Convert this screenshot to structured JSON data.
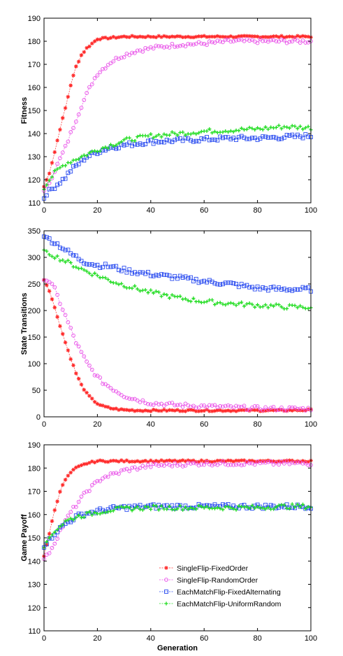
{
  "chart_data": [
    {
      "type": "line",
      "ylabel": "Fitness",
      "xlabel": "",
      "xlim": [
        0,
        100
      ],
      "ylim": [
        110,
        190
      ],
      "xticks": [
        0,
        20,
        40,
        60,
        80,
        100
      ],
      "yticks": [
        110,
        120,
        130,
        140,
        150,
        160,
        170,
        180,
        190
      ],
      "grid": false,
      "legend": false,
      "series": [
        {
          "key": "sf_fixed",
          "color": "#ff2a2a",
          "marker": "star",
          "x": [
            0,
            2,
            4,
            6,
            8,
            10,
            12,
            14,
            16,
            18,
            20,
            25,
            30,
            40,
            50,
            60,
            70,
            80,
            90,
            100
          ],
          "y": [
            117,
            123,
            132,
            142,
            151,
            161,
            169,
            174,
            177,
            179,
            181,
            181.5,
            182,
            182,
            182,
            182,
            182,
            182,
            182,
            182
          ]
        },
        {
          "key": "sf_random",
          "color": "#e84de8",
          "marker": "circle",
          "x": [
            0,
            2,
            4,
            6,
            8,
            10,
            12,
            14,
            16,
            18,
            20,
            22,
            25,
            28,
            30,
            35,
            40,
            50,
            60,
            70,
            80,
            90,
            100
          ],
          "y": [
            115,
            119,
            124,
            129,
            134,
            140,
            146,
            152,
            157,
            162,
            166,
            168,
            171,
            173,
            174,
            176,
            177,
            178.5,
            179,
            180,
            180,
            180,
            180
          ]
        },
        {
          "key": "em_fixed",
          "color": "#2a4cf0",
          "marker": "square",
          "x": [
            0,
            2,
            4,
            6,
            8,
            10,
            12,
            14,
            16,
            18,
            20,
            25,
            30,
            40,
            50,
            60,
            70,
            80,
            90,
            100
          ],
          "y": [
            112,
            115,
            117,
            119,
            121,
            124,
            126,
            128,
            130,
            131,
            132,
            134,
            135,
            136.5,
            137,
            137.5,
            138,
            138,
            138.5,
            139
          ]
        },
        {
          "key": "em_uniform",
          "color": "#22dd22",
          "marker": "plus",
          "x": [
            0,
            2,
            4,
            6,
            8,
            10,
            12,
            14,
            16,
            18,
            20,
            25,
            30,
            40,
            50,
            60,
            70,
            80,
            90,
            100
          ],
          "y": [
            116,
            120,
            123,
            125,
            127,
            128,
            129,
            130,
            131,
            132,
            133,
            135,
            137,
            139,
            140,
            141,
            141.5,
            142,
            143,
            142.5
          ]
        }
      ]
    },
    {
      "type": "line",
      "ylabel": "State Transitions",
      "xlabel": "",
      "xlim": [
        0,
        100
      ],
      "ylim": [
        0,
        350
      ],
      "xticks": [
        0,
        20,
        40,
        60,
        80,
        100
      ],
      "yticks": [
        0,
        50,
        100,
        150,
        200,
        250,
        300,
        350
      ],
      "grid": false,
      "legend": false,
      "series": [
        {
          "key": "sf_fixed",
          "color": "#ff2a2a",
          "marker": "star",
          "x": [
            0,
            2,
            4,
            6,
            8,
            10,
            12,
            14,
            16,
            18,
            20,
            22,
            25,
            28,
            30,
            35,
            40,
            50,
            60,
            70,
            80,
            90,
            100
          ],
          "y": [
            258,
            238,
            205,
            172,
            140,
            110,
            82,
            60,
            44,
            33,
            25,
            20,
            16,
            14,
            13,
            12,
            12,
            12,
            12,
            12,
            12,
            12,
            13
          ]
        },
        {
          "key": "sf_random",
          "color": "#e84de8",
          "marker": "circle",
          "x": [
            0,
            2,
            4,
            6,
            8,
            10,
            12,
            14,
            16,
            18,
            20,
            22,
            25,
            28,
            30,
            35,
            40,
            50,
            60,
            70,
            80,
            90,
            100
          ],
          "y": [
            258,
            255,
            240,
            215,
            190,
            165,
            140,
            120,
            102,
            88,
            75,
            65,
            55,
            46,
            40,
            32,
            26,
            22,
            20,
            18,
            16,
            15,
            15
          ]
        },
        {
          "key": "em_fixed",
          "color": "#2a4cf0",
          "marker": "square",
          "x": [
            0,
            5,
            10,
            15,
            20,
            25,
            30,
            40,
            50,
            60,
            70,
            80,
            90,
            100
          ],
          "y": [
            340,
            325,
            307,
            292,
            285,
            283,
            276,
            268,
            262,
            255,
            250,
            242,
            240,
            240
          ]
        },
        {
          "key": "em_uniform",
          "color": "#22dd22",
          "marker": "plus",
          "x": [
            0,
            5,
            10,
            15,
            20,
            25,
            30,
            40,
            50,
            60,
            70,
            80,
            90,
            100
          ],
          "y": [
            313,
            300,
            288,
            276,
            266,
            256,
            248,
            234,
            224,
            217,
            213,
            210,
            207,
            206
          ]
        }
      ]
    },
    {
      "type": "line",
      "ylabel": "Game Payoff",
      "xlabel": "Generation",
      "xlim": [
        0,
        100
      ],
      "ylim": [
        110,
        190
      ],
      "xticks": [
        0,
        20,
        40,
        60,
        80,
        100
      ],
      "yticks": [
        110,
        120,
        130,
        140,
        150,
        160,
        170,
        180,
        190
      ],
      "grid": false,
      "legend": "bottom-right",
      "series": [
        {
          "key": "sf_fixed",
          "name": "SingleFlip-FixedOrder",
          "color": "#ff2a2a",
          "marker": "star",
          "x": [
            0,
            2,
            4,
            6,
            8,
            10,
            12,
            14,
            16,
            18,
            20,
            25,
            30,
            40,
            50,
            60,
            70,
            80,
            90,
            100
          ],
          "y": [
            142,
            152,
            162,
            170,
            175,
            178,
            180,
            181,
            182,
            182.5,
            183,
            183,
            183,
            183,
            183,
            183,
            183,
            183,
            183,
            183
          ]
        },
        {
          "key": "sf_random",
          "name": "SingleFlip-RandomOrder",
          "color": "#e84de8",
          "marker": "circle",
          "x": [
            0,
            2,
            4,
            6,
            8,
            10,
            12,
            14,
            16,
            18,
            20,
            22,
            25,
            28,
            30,
            35,
            40,
            50,
            60,
            70,
            80,
            90,
            100
          ],
          "y": [
            141,
            144,
            148,
            153,
            157,
            161,
            164,
            167,
            170,
            172,
            174,
            176,
            177,
            178,
            179,
            180,
            181,
            181.5,
            182,
            182,
            182,
            182,
            182
          ]
        },
        {
          "key": "em_fixed",
          "name": "EachMatchFlip-FixedAlternating",
          "color": "#2a4cf0",
          "marker": "square",
          "x": [
            0,
            2,
            4,
            6,
            8,
            10,
            12,
            14,
            16,
            18,
            20,
            25,
            30,
            40,
            50,
            60,
            70,
            80,
            90,
            100
          ],
          "y": [
            146,
            149,
            152,
            154,
            156,
            157.5,
            159,
            160,
            160.5,
            161,
            161.5,
            162.5,
            163,
            163.5,
            163.5,
            163.5,
            163.5,
            163.5,
            163.5,
            163.5
          ]
        },
        {
          "key": "em_uniform",
          "name": "EachMatchFlip-UniformRandom",
          "color": "#22dd22",
          "marker": "plus",
          "x": [
            0,
            2,
            4,
            6,
            8,
            10,
            12,
            14,
            16,
            18,
            20,
            25,
            30,
            40,
            50,
            60,
            70,
            80,
            90,
            100
          ],
          "y": [
            146,
            150,
            153,
            155,
            157,
            158,
            159,
            159.5,
            160,
            160.5,
            161,
            162,
            162.5,
            163,
            163,
            163,
            163,
            163,
            163.5,
            163.5
          ]
        }
      ]
    }
  ]
}
